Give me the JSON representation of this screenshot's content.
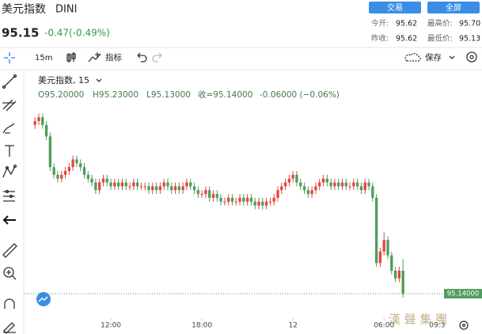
{
  "header": {
    "title": "美元指数",
    "symbol": "DINI",
    "price": "95.15",
    "change": "-0.47(-0.49%)",
    "buttons": [
      "交易",
      "全屏"
    ],
    "stats": [
      {
        "label": "今开:",
        "value": "95.62"
      },
      {
        "label": "最高价:",
        "value": "95.70"
      },
      {
        "label": "昨收:",
        "value": "95.62"
      },
      {
        "label": "最低价:",
        "value": "95.13"
      }
    ]
  },
  "toolbar": {
    "interval": "15m",
    "indicators": "指标",
    "save": "保存"
  },
  "watermark": "漢 聲 集 團",
  "chart_data": {
    "type": "candlestick",
    "legend_title": "美元指数, 15",
    "ohlc_legend": [
      "O95.20000",
      "H95.23000",
      "L95.13000",
      "收=95.14000",
      "-0.06000 (−0.06%)"
    ],
    "up_color": "#e4463f",
    "down_color": "#4f9d5c",
    "x": [
      7,
      7.25,
      7.5,
      7.75,
      8,
      8.25,
      8.5,
      8.75,
      9,
      9.25,
      9.5,
      9.75,
      10,
      10.25,
      10.5,
      10.75,
      11,
      11.25,
      11.5,
      11.75,
      12,
      12.25,
      12.5,
      12.75,
      13,
      13.25,
      13.5,
      13.75,
      14,
      14.25,
      14.5,
      14.75,
      15,
      15.25,
      15.5,
      15.75,
      16,
      16.25,
      16.5,
      16.75,
      17,
      17.25,
      17.5,
      17.75,
      18,
      18.25,
      18.5,
      18.75,
      19,
      19.25,
      19.5,
      19.75,
      20,
      20.25,
      20.5,
      20.75,
      21,
      21.25,
      21.5,
      21.75,
      22,
      22.25,
      22.5,
      22.75,
      23,
      23.25,
      23.5,
      23.75,
      24,
      24.25,
      24.5,
      24.75,
      25,
      25.25,
      25.5,
      25.75,
      26,
      26.25,
      26.5,
      26.75,
      27,
      27.25,
      27.5,
      27.75,
      28,
      28.25,
      28.5,
      28.75,
      29,
      29.25,
      29.5,
      29.75,
      30,
      30.25,
      30.5,
      30.75,
      31,
      31.25
    ],
    "open": [
      95.58,
      95.59,
      95.6,
      95.58,
      95.55,
      95.47,
      95.45,
      95.44,
      95.45,
      95.46,
      95.47,
      95.49,
      95.48,
      95.47,
      95.45,
      95.44,
      95.43,
      95.41,
      95.43,
      95.44,
      95.43,
      95.42,
      95.43,
      95.42,
      95.43,
      95.42,
      95.42,
      95.43,
      95.42,
      95.42,
      95.42,
      95.41,
      95.42,
      95.41,
      95.42,
      95.43,
      95.42,
      95.41,
      95.42,
      95.41,
      95.42,
      95.43,
      95.42,
      95.41,
      95.4,
      95.4,
      95.41,
      95.39,
      95.4,
      95.39,
      95.38,
      95.38,
      95.39,
      95.38,
      95.38,
      95.39,
      95.38,
      95.39,
      95.38,
      95.37,
      95.38,
      95.37,
      95.38,
      95.38,
      95.39,
      95.41,
      95.42,
      95.43,
      95.44,
      95.45,
      95.43,
      95.42,
      95.41,
      95.4,
      95.41,
      95.42,
      95.43,
      95.44,
      95.43,
      95.42,
      95.43,
      95.42,
      95.43,
      95.42,
      95.42,
      95.43,
      95.42,
      95.41,
      95.43,
      95.42,
      95.39,
      95.22,
      95.25,
      95.28,
      95.24,
      95.2,
      95.18,
      95.2
    ],
    "high": [
      95.6,
      95.61,
      95.61,
      95.59,
      95.56,
      95.48,
      95.46,
      95.46,
      95.47,
      95.48,
      95.5,
      95.5,
      95.49,
      95.48,
      95.46,
      95.45,
      95.44,
      95.44,
      95.45,
      95.45,
      95.44,
      95.44,
      95.44,
      95.44,
      95.44,
      95.43,
      95.44,
      95.44,
      95.43,
      95.43,
      95.43,
      95.43,
      95.43,
      95.43,
      95.44,
      95.44,
      95.43,
      95.43,
      95.43,
      95.43,
      95.44,
      95.44,
      95.43,
      95.42,
      95.41,
      95.42,
      95.42,
      95.41,
      95.41,
      95.4,
      95.39,
      95.4,
      95.4,
      95.39,
      95.4,
      95.4,
      95.4,
      95.4,
      95.39,
      95.39,
      95.39,
      95.39,
      95.39,
      95.4,
      95.42,
      95.43,
      95.44,
      95.45,
      95.46,
      95.46,
      95.44,
      95.43,
      95.42,
      95.42,
      95.43,
      95.44,
      95.45,
      95.45,
      95.44,
      95.44,
      95.44,
      95.44,
      95.44,
      95.43,
      95.44,
      95.44,
      95.43,
      95.44,
      95.44,
      95.43,
      95.4,
      95.26,
      95.3,
      95.29,
      95.25,
      95.21,
      95.21,
      95.23
    ],
    "low": [
      95.57,
      95.58,
      95.57,
      95.54,
      95.46,
      95.44,
      95.43,
      95.43,
      95.44,
      95.45,
      95.46,
      95.47,
      95.46,
      95.44,
      95.43,
      95.42,
      95.4,
      95.4,
      95.42,
      95.42,
      95.41,
      95.41,
      95.41,
      95.41,
      95.41,
      95.41,
      95.41,
      95.41,
      95.41,
      95.41,
      95.4,
      95.4,
      95.4,
      95.4,
      95.41,
      95.41,
      95.4,
      95.4,
      95.4,
      95.4,
      95.41,
      95.41,
      95.4,
      95.39,
      95.39,
      95.39,
      95.38,
      95.38,
      95.38,
      95.37,
      95.37,
      95.37,
      95.37,
      95.37,
      95.37,
      95.37,
      95.37,
      95.37,
      95.36,
      95.36,
      95.36,
      95.36,
      95.37,
      95.37,
      95.38,
      95.4,
      95.41,
      95.42,
      95.43,
      95.42,
      95.41,
      95.4,
      95.39,
      95.39,
      95.4,
      95.41,
      95.42,
      95.42,
      95.41,
      95.41,
      95.41,
      95.41,
      95.41,
      95.41,
      95.41,
      95.41,
      95.4,
      95.4,
      95.41,
      95.38,
      95.21,
      95.21,
      95.24,
      95.23,
      95.19,
      95.17,
      95.17,
      95.13
    ],
    "close": [
      95.59,
      95.6,
      95.58,
      95.55,
      95.47,
      95.45,
      95.44,
      95.45,
      95.46,
      95.47,
      95.49,
      95.48,
      95.47,
      95.45,
      95.44,
      95.43,
      95.41,
      95.43,
      95.44,
      95.43,
      95.42,
      95.43,
      95.42,
      95.43,
      95.42,
      95.42,
      95.43,
      95.42,
      95.42,
      95.42,
      95.41,
      95.42,
      95.41,
      95.42,
      95.43,
      95.42,
      95.41,
      95.42,
      95.41,
      95.42,
      95.43,
      95.42,
      95.41,
      95.4,
      95.4,
      95.41,
      95.39,
      95.4,
      95.39,
      95.38,
      95.38,
      95.39,
      95.38,
      95.38,
      95.39,
      95.38,
      95.39,
      95.38,
      95.37,
      95.38,
      95.37,
      95.38,
      95.38,
      95.39,
      95.41,
      95.42,
      95.43,
      95.44,
      95.45,
      95.43,
      95.42,
      95.41,
      95.4,
      95.41,
      95.42,
      95.43,
      95.44,
      95.43,
      95.42,
      95.43,
      95.42,
      95.43,
      95.42,
      95.42,
      95.43,
      95.42,
      95.41,
      95.43,
      95.42,
      95.39,
      95.22,
      95.25,
      95.28,
      95.24,
      95.2,
      95.18,
      95.2,
      95.14
    ],
    "xlim": [
      6.26,
      33.9
    ],
    "xticks": [
      {
        "value": 12,
        "label": "12:00"
      },
      {
        "value": 18,
        "label": "18:00"
      },
      {
        "value": 24,
        "label": "12"
      },
      {
        "value": 30,
        "label": "06:00"
      },
      {
        "value": 33.5,
        "label": "09:3"
      }
    ],
    "ylim": [
      95.07,
      95.72
    ],
    "last_price": {
      "value": 95.14,
      "label": "95.14000"
    }
  }
}
